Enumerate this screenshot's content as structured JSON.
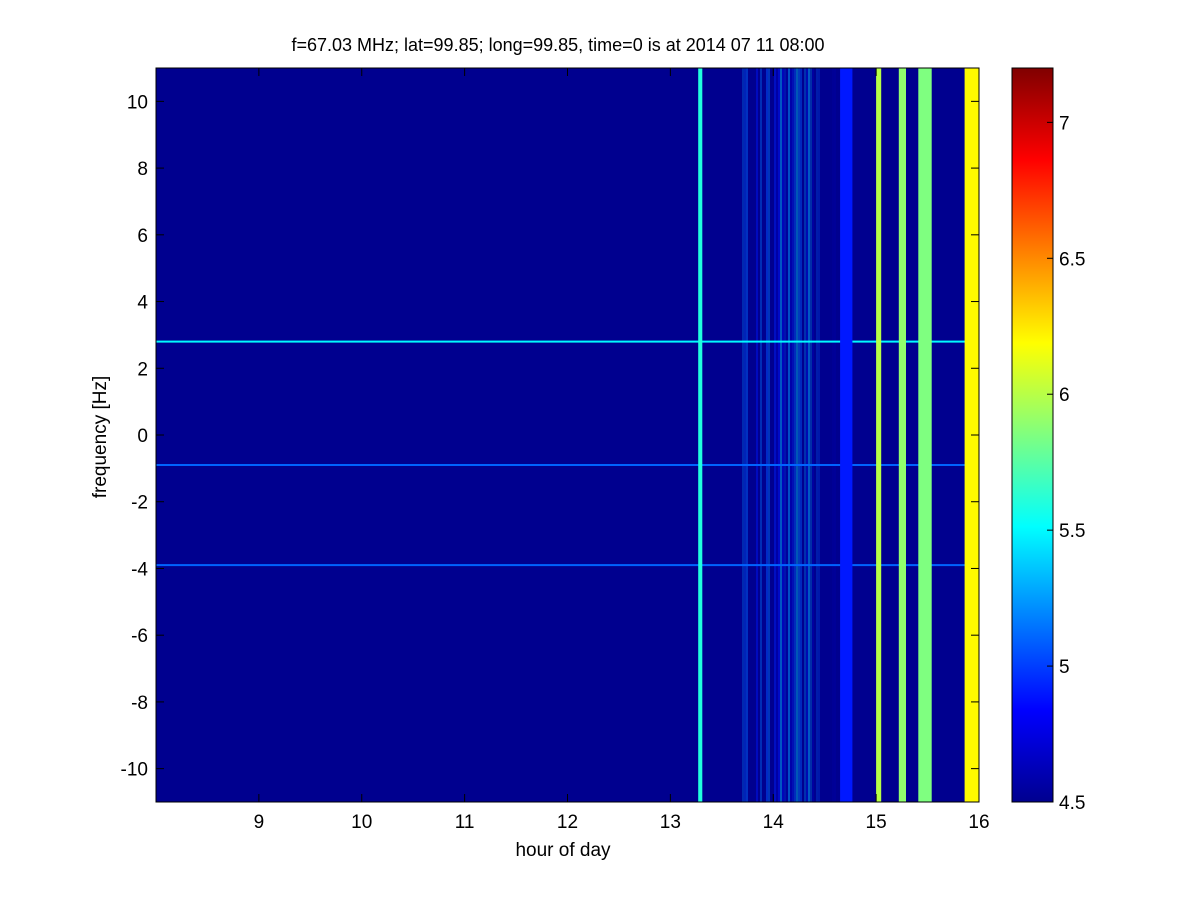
{
  "chart_data": {
    "type": "heatmap",
    "title": "f=67.03 MHz;  lat=99.85; long=99.85, time=0 is at 2014 07 11 08:00",
    "xlabel": "hour of day",
    "ylabel": "frequency [Hz]",
    "xlim": [
      8,
      16
    ],
    "ylim": [
      -11,
      11
    ],
    "x_ticks": [
      9,
      10,
      11,
      12,
      13,
      14,
      15,
      16
    ],
    "x_tick_labels": [
      "9",
      "10",
      "11",
      "12",
      "13",
      "14",
      "15",
      "16"
    ],
    "y_ticks": [
      -10,
      -8,
      -6,
      -4,
      -2,
      0,
      2,
      4,
      6,
      8,
      10
    ],
    "y_tick_labels": [
      "-10",
      "-8",
      "-6",
      "-4",
      "-2",
      "0",
      "2",
      "4",
      "6",
      "8",
      "10"
    ],
    "colorbar": {
      "colormap": "jet",
      "range": [
        4.5,
        7.2
      ],
      "ticks": [
        4.5,
        5,
        5.5,
        6,
        6.5,
        7
      ],
      "tick_labels": [
        "4.5",
        "5",
        "5.5",
        "6",
        "6.5",
        "7"
      ]
    },
    "background_value": 4.5,
    "horizontal_lines": [
      {
        "frequency": 2.8,
        "value": 5.5,
        "x_start": 8,
        "x_end": 16
      },
      {
        "frequency": -0.9,
        "value": 5.1,
        "x_start": 8,
        "x_end": 16
      },
      {
        "frequency": -3.9,
        "value": 5.1,
        "x_start": 8,
        "x_end": 16
      }
    ],
    "vertical_bands": [
      {
        "x_start": 13.27,
        "x_end": 13.31,
        "value": 5.6
      },
      {
        "x_start": 14.65,
        "x_end": 14.77,
        "value": 4.9
      },
      {
        "x_start": 15.0,
        "x_end": 15.05,
        "value": 6.0
      },
      {
        "x_start": 15.22,
        "x_end": 15.29,
        "value": 5.9
      },
      {
        "x_start": 15.41,
        "x_end": 15.54,
        "value": 5.85
      },
      {
        "x_start": 15.86,
        "x_end": 16.0,
        "value": 6.2
      }
    ],
    "noise_region": {
      "x_start": 13.7,
      "x_end": 14.6,
      "value_range": [
        4.6,
        5.6
      ]
    },
    "grid": false
  }
}
